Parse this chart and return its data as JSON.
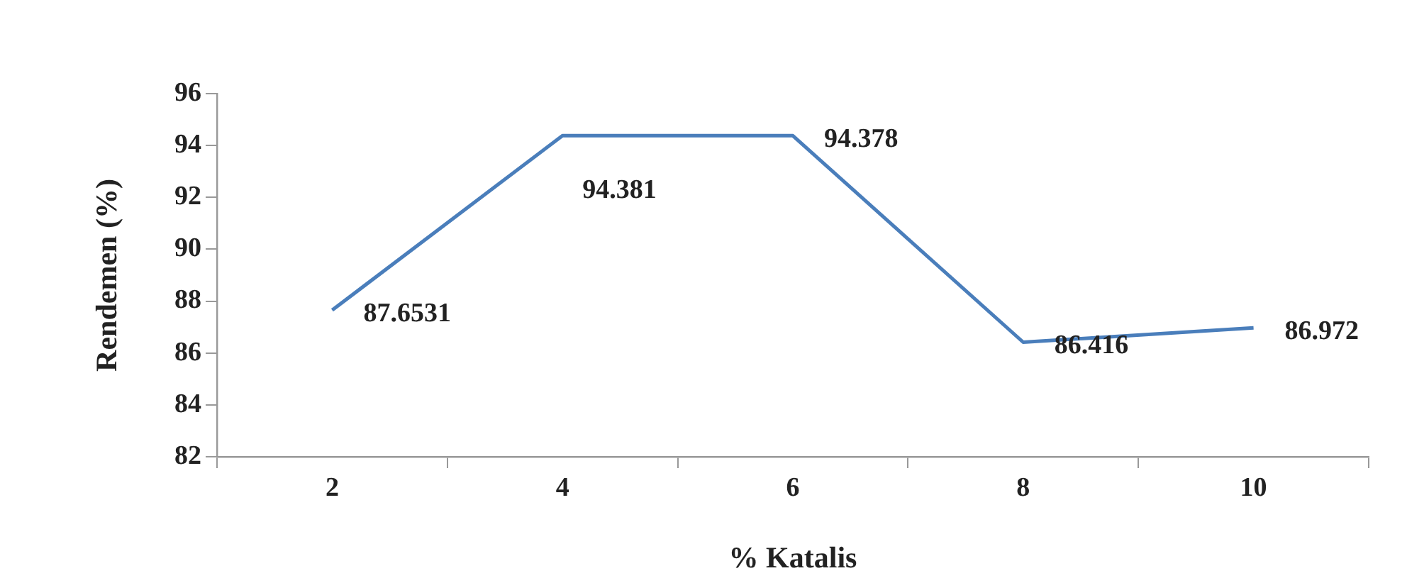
{
  "chart_data": {
    "type": "line",
    "xlabel": "% Katalis",
    "ylabel": "Rendemen (%)",
    "categories": [
      "2",
      "4",
      "6",
      "8",
      "10"
    ],
    "series": [
      {
        "color": "#4a7ebb",
        "values": [
          87.6531,
          94.381,
          94.378,
          86.416,
          86.972
        ]
      }
    ],
    "ylim": [
      82,
      96
    ],
    "yticks": [
      82,
      84,
      86,
      88,
      90,
      92,
      94,
      96
    ],
    "data_labels": true,
    "grid": false,
    "legend": false,
    "marker": "none",
    "line_style": "solid"
  }
}
